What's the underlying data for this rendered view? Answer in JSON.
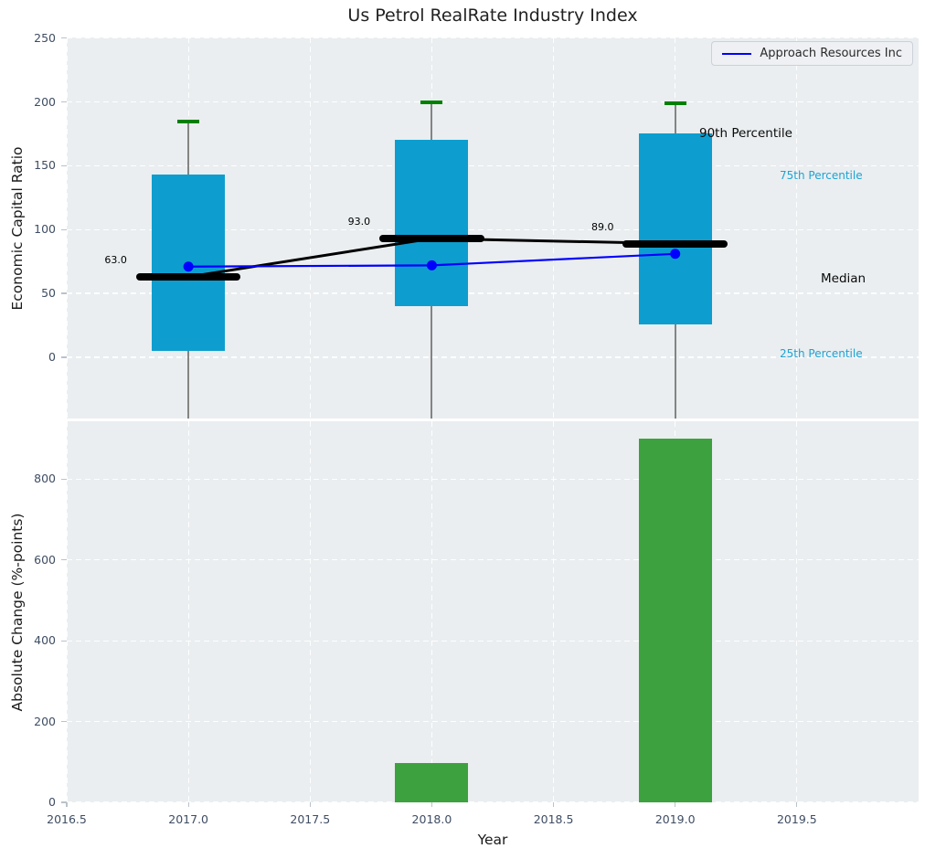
{
  "colors": {
    "box_fill": "#0d9ecf",
    "company_line": "#0000ff",
    "median_color": "#000000",
    "whisker_cap": "#008000",
    "whisker_line": "#848484",
    "bar_fill": "#3ea13f",
    "plot_bg": "#eaeef0",
    "grid": "#ffffff",
    "tick_label": "#3e4d63",
    "annotation_cyan": "#1da3d4",
    "annotation_black": "#0a0a0a"
  },
  "chart_data": [
    {
      "type": "boxplot",
      "title": "Us Petrol RealRate Industry Index",
      "ylabel": "Economic Capital Ratio",
      "x": [
        2017,
        2018,
        2019
      ],
      "p90": [
        185,
        200,
        199
      ],
      "p75": [
        143,
        170,
        175
      ],
      "median": [
        63,
        93,
        89
      ],
      "p25": [
        5,
        40,
        26
      ],
      "median_labels": [
        "63.0",
        "93.0",
        "89.0"
      ],
      "company_series": {
        "name": "Approach Resources Inc",
        "values": [
          71,
          72,
          81
        ]
      },
      "annotations": {
        "p90": "90th Percentile",
        "p75": "75th Percentile",
        "median": "Median",
        "p25": "25th Percentile"
      },
      "yticks": [
        0,
        50,
        100,
        150,
        200,
        250
      ],
      "ylim": [
        -48,
        250.5
      ],
      "xlim": [
        2016.5,
        2020.0
      ],
      "grid": true,
      "legend_position": "upper right",
      "box_width_years": 0.3,
      "median_bar_width_years": 0.43,
      "cap_width_years": 0.09
    },
    {
      "type": "bar",
      "ylabel": "Absolute Change (%-points)",
      "xlabel": "Year",
      "categories": [
        2018,
        2019
      ],
      "values": [
        97,
        900
      ],
      "bar_width_years": 0.3,
      "yticks": [
        0,
        200,
        400,
        600,
        800
      ],
      "ylim": [
        0,
        943
      ],
      "xticks": [
        2016.5,
        2017.0,
        2017.5,
        2018.0,
        2018.5,
        2019.0,
        2019.5
      ],
      "xtick_labels": [
        "2016.5",
        "2017.0",
        "2017.5",
        "2018.0",
        "2018.5",
        "2019.0",
        "2019.5"
      ],
      "xlim": [
        2016.5,
        2020.0
      ],
      "grid": true
    }
  ]
}
